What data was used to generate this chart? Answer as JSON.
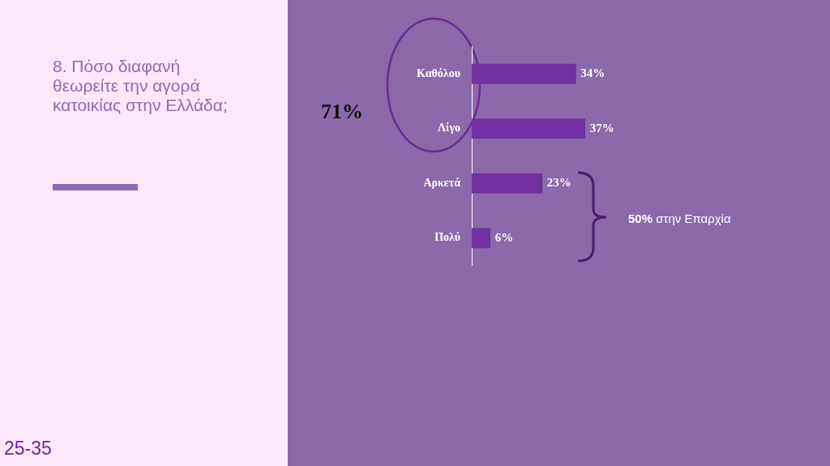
{
  "chart_data": {
    "type": "bar",
    "orientation": "horizontal",
    "title": "8. Πόσο διαφανή θεωρείτε την αγορά κατοικίας στην Ελλάδα;",
    "categories": [
      "Καθόλου",
      "Λίγο",
      "Αρκετά",
      "Πολύ"
    ],
    "values": [
      34,
      37,
      23,
      6
    ],
    "value_labels": [
      "34%",
      "37%",
      "23%",
      "6%"
    ],
    "color": "#7030a0",
    "tick_labels": "y",
    "legend": false,
    "annotations": [
      "71%",
      "50% στην Επαρχία",
      "25-35"
    ]
  }
}
